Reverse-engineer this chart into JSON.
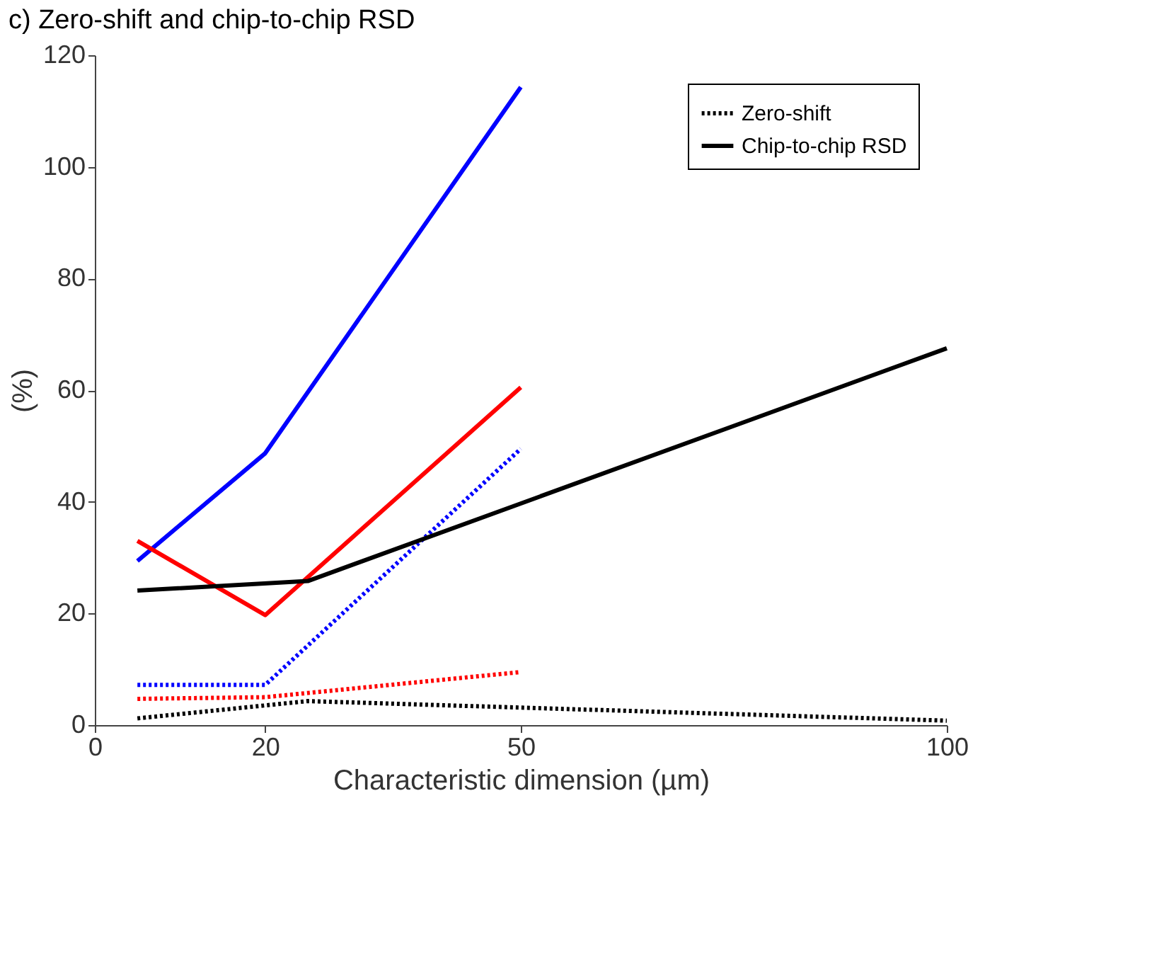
{
  "chart_data": {
    "type": "line",
    "title": "c) Zero-shift and chip-to-chip RSD",
    "xlabel": "Characteristic dimension (µm)",
    "ylabel": "(%)",
    "xlim": [
      0,
      100
    ],
    "ylim": [
      0,
      120
    ],
    "xticks": [
      0,
      20,
      50,
      100
    ],
    "yticks": [
      0,
      20,
      40,
      60,
      80,
      100,
      120
    ],
    "grid": false,
    "legend": "top right",
    "marker": "none",
    "series": [
      {
        "color": "#0000ff",
        "line_style": "solid",
        "x": [
          5,
          20,
          50
        ],
        "values": [
          29.4,
          48.7,
          114.3
        ]
      },
      {
        "color": "#ff0000",
        "line_style": "solid",
        "x": [
          5,
          20,
          50
        ],
        "values": [
          33,
          19.7,
          60.5
        ]
      },
      {
        "color": "#0000ff",
        "line_style": "dotted",
        "x": [
          5,
          20,
          50
        ],
        "values": [
          7.2,
          7.2,
          49.5
        ]
      },
      {
        "color": "#ff0000",
        "line_style": "dotted",
        "x": [
          5,
          20,
          50
        ],
        "values": [
          4.7,
          5,
          9.5
        ]
      },
      {
        "name": "Zero-shift",
        "color": "#000000",
        "line_style": "dotted",
        "x": [
          5,
          25,
          100
        ],
        "values": [
          1.2,
          4.3,
          0.8
        ]
      },
      {
        "name": "Chip-to-chip RSD",
        "color": "#000000",
        "line_style": "solid",
        "x": [
          5,
          25,
          100
        ],
        "values": [
          24.1,
          25.8,
          67.5
        ]
      }
    ]
  }
}
